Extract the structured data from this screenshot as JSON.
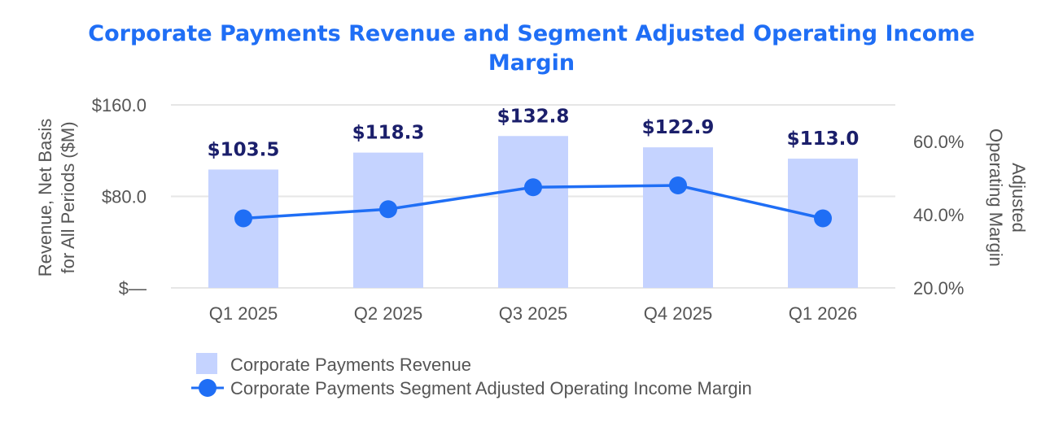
{
  "chart_data": {
    "type": "bar",
    "title_lines": [
      "Corporate Payments Revenue and Segment Adjusted Operating Income",
      "Margin"
    ],
    "categories": [
      "Q1 2025",
      "Q2 2025",
      "Q3 2025",
      "Q4 2025",
      "Q1 2026"
    ],
    "ylabel_lines": [
      "Revenue, Net Basis",
      "for All Periods ($M)"
    ],
    "y2label_lines": [
      "Adjusted",
      "Operating Margin"
    ],
    "ylim": [
      0,
      160
    ],
    "y_ticks": [
      0,
      80,
      160
    ],
    "y_tick_labels": [
      "$—",
      "$80.0",
      "$160.0"
    ],
    "y2lim": [
      20,
      70
    ],
    "y2_ticks": [
      20,
      40,
      60
    ],
    "y2_tick_labels": [
      "20.0%",
      "40.0%",
      "60.0%"
    ],
    "series": [
      {
        "name": "Corporate Payments Revenue",
        "type": "bar",
        "axis": "left",
        "values": [
          103.5,
          118.3,
          132.8,
          122.9,
          113.0
        ],
        "labels": [
          "$103.5",
          "$118.3",
          "$132.8",
          "$122.9",
          "$113.0"
        ],
        "color": "#c5d3ff"
      },
      {
        "name": "Corporate Payments Segment Adjusted Operating Income Margin",
        "type": "line",
        "axis": "right",
        "values": [
          39.0,
          41.5,
          47.5,
          48.0,
          39.0
        ],
        "color": "#1f6ef5"
      }
    ],
    "grid": true,
    "legend_position": "bottom"
  }
}
